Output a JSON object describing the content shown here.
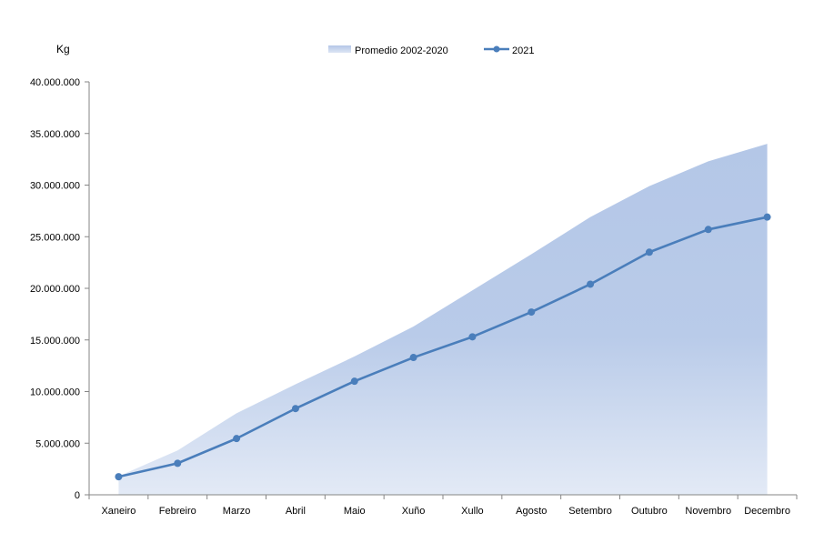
{
  "chart_data": {
    "type": "area",
    "title": "",
    "ylabel": "Kg",
    "xlabel": "",
    "ylim": [
      0,
      40000000
    ],
    "y_ticks": [
      0,
      5000000,
      10000000,
      15000000,
      20000000,
      25000000,
      30000000,
      35000000,
      40000000
    ],
    "y_tick_labels": [
      "0",
      "5.000.000",
      "10.000.000",
      "15.000.000",
      "20.000.000",
      "25.000.000",
      "30.000.000",
      "35.000.000",
      "40.000.000"
    ],
    "categories": [
      "Xaneiro",
      "Febreiro",
      "Marzo",
      "Abril",
      "Maio",
      "Xuño",
      "Xullo",
      "Agosto",
      "Setembro",
      "Outubro",
      "Novembro",
      "Decembro"
    ],
    "legend_position": "top-center",
    "grid": false,
    "series": [
      {
        "name": "Promedio 2002-2020",
        "type": "area",
        "color": "#b4c7e7",
        "values": [
          1800000,
          4300000,
          7900000,
          10700000,
          13400000,
          16300000,
          19800000,
          23300000,
          26900000,
          29900000,
          32300000,
          34000000
        ]
      },
      {
        "name": "2021",
        "type": "line",
        "color": "#4a7ebb",
        "values": [
          1750000,
          3050000,
          5450000,
          8350000,
          11000000,
          13300000,
          15300000,
          17700000,
          20400000,
          23500000,
          25700000,
          26900000
        ]
      }
    ]
  }
}
